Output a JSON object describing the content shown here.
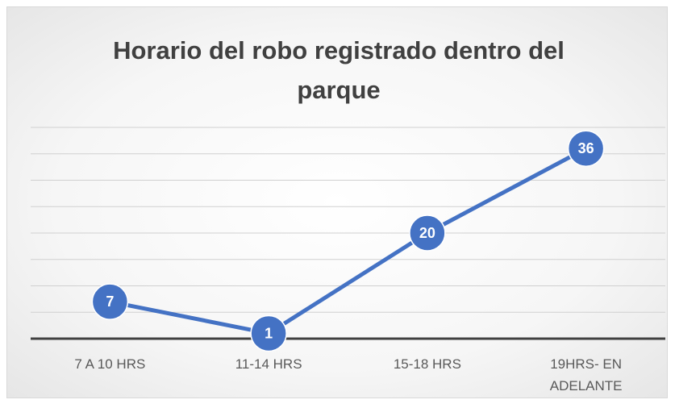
{
  "chart_data": {
    "type": "line",
    "title": "Horario del robo registrado dentro del parque",
    "categories": [
      "7 A 10 HRS",
      "11-14 HRS",
      "15-18 HRS",
      "19HRS- EN ADELANTE"
    ],
    "values": [
      7,
      1,
      20,
      36
    ],
    "color": "#4472c4",
    "ylim": [
      0,
      40
    ],
    "yticks": [
      0,
      5,
      10,
      15,
      20,
      25,
      30,
      35,
      40
    ],
    "grid": true
  }
}
